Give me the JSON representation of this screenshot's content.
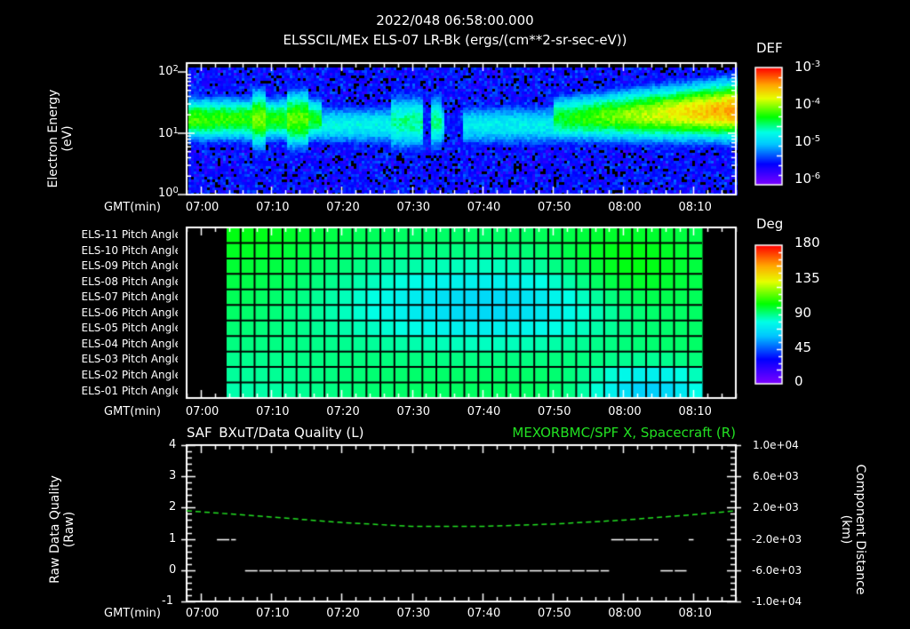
{
  "header": {
    "timestamp": "2022/048 06:58:00.000",
    "subtitle": "ELSSCIL/MEx ELS-07 LR-Bk  (ergs/(cm**2-sr-sec-eV))"
  },
  "time_axis": {
    "label": "GMT(min)",
    "ticks": [
      "07:00",
      "07:10",
      "07:20",
      "07:30",
      "07:40",
      "07:50",
      "08:00",
      "08:10"
    ]
  },
  "panel_spectrogram": {
    "ylabel_line1": "Electron Energy",
    "ylabel_line2": "(eV)",
    "yticks": [
      {
        "base": "10",
        "exp": "2"
      },
      {
        "base": "10",
        "exp": "1"
      },
      {
        "base": "10",
        "exp": "0"
      }
    ],
    "colorbar": {
      "title": "DEF",
      "ticks": [
        {
          "base": "10",
          "exp": "-3"
        },
        {
          "base": "10",
          "exp": "-4"
        },
        {
          "base": "10",
          "exp": "-5"
        },
        {
          "base": "10",
          "exp": "-6"
        }
      ]
    }
  },
  "panel_pitch": {
    "row_labels": [
      "ELS-11 Pitch Angle",
      "ELS-10 Pitch Angle",
      "ELS-09 Pitch Angle",
      "ELS-08 Pitch Angle",
      "ELS-07 Pitch Angle",
      "ELS-06 Pitch Angle",
      "ELS-05 Pitch Angle",
      "ELS-04 Pitch Angle",
      "ELS-03 Pitch Angle",
      "ELS-02 Pitch Angle",
      "ELS-01 Pitch Angle"
    ],
    "colorbar": {
      "title": "Deg",
      "ticks": [
        "180",
        "135",
        "90",
        "45",
        "0"
      ]
    }
  },
  "panel_quality": {
    "left_title": "SAF_BXuT/Data Quality (L)",
    "right_title": "MEXORBMC/SPF X, Spacecraft (R)",
    "ylabel_left_line1": "Raw Data Quality",
    "ylabel_left_line2": "(Raw)",
    "yticks_left": [
      "4",
      "3",
      "2",
      "1",
      "0",
      "-1"
    ],
    "ylabel_right_line1": "Component Distance",
    "ylabel_right_line2": "(km)",
    "yticks_right": [
      "1.0e+04",
      "6.0e+03",
      "2.0e+03",
      "-2.0e+03",
      "-6.0e+03",
      "-1.0e+04"
    ]
  },
  "colors": {
    "background": "#000000",
    "axis": "#ffffff",
    "spf_x_line": "#22e022",
    "quality_line": "#ffffff"
  },
  "chart_data": [
    {
      "type": "heatmap",
      "title": "ELSSCIL/MEx ELS-07 LR-Bk (ergs/(cm**2-sr-sec-eV))",
      "xlabel": "GMT(min)",
      "ylabel": "Electron Energy (eV)",
      "x_range": [
        "06:58",
        "08:16"
      ],
      "y_scale": "log",
      "ylim": [
        1,
        150
      ],
      "colorbar_label": "DEF",
      "colorbar_range": [
        1e-06,
        0.001
      ],
      "features": [
        {
          "time": "06:58-07:17",
          "energy_band_eV": [
            6,
            40
          ],
          "intensity": "1e-4 to 2e-4"
        },
        {
          "time": "07:17-07:27",
          "energy_band_eV": [
            6,
            30
          ],
          "intensity": "~2e-5"
        },
        {
          "time": "07:28-07:33",
          "energy_band_eV": [
            5,
            40
          ],
          "intensity": "~5e-5"
        },
        {
          "time": "07:34-07:50",
          "energy_band_eV": [
            6,
            30
          ],
          "intensity": "~1.5e-5"
        },
        {
          "time": "07:50-08:16",
          "energy_band_eV": [
            6,
            60
          ],
          "intensity": "1e-4 rising to 6e-4 near 08:14"
        }
      ]
    },
    {
      "type": "heatmap",
      "title": "Pitch Angle",
      "xlabel": "GMT(min)",
      "rows": [
        "ELS-11",
        "ELS-10",
        "ELS-09",
        "ELS-08",
        "ELS-07",
        "ELS-06",
        "ELS-05",
        "ELS-04",
        "ELS-03",
        "ELS-02",
        "ELS-01"
      ],
      "x_range": [
        "07:03",
        "08:11"
      ],
      "colorbar_label": "Deg",
      "colorbar_range": [
        0,
        180
      ],
      "summary": "Values ~70-110 deg; minimum ~55 deg around 07:35-07:45 rows ELS-07..ELS-05; ~100-110 deg around 08:00 rows ELS-10..ELS-07; ~55 deg near 08:00-08:10 row ELS-01"
    },
    {
      "type": "line",
      "title_left": "SAF_BXuT/Data Quality (L)",
      "title_right": "MEXORBMC/SPF X, Spacecraft (R)",
      "xlabel": "GMT(min)",
      "ylabel_left": "Raw Data Quality (Raw)",
      "ylabel_right": "Component Distance (km)",
      "ylim_left": [
        -1,
        4
      ],
      "ylim_right": [
        -10000,
        10000
      ],
      "series": [
        {
          "name": "Data Quality",
          "axis": "left",
          "segments": [
            {
              "x": [
                "07:02",
                "07:05"
              ],
              "y": 1
            },
            {
              "x": [
                "07:06",
                "07:58"
              ],
              "y": 0
            },
            {
              "x": [
                "07:58",
                "08:05"
              ],
              "y": 1
            },
            {
              "x": [
                "08:05",
                "08:09"
              ],
              "y": 0
            },
            {
              "x": [
                "08:09",
                "08:10"
              ],
              "y": 1
            }
          ]
        },
        {
          "name": "SPF X",
          "axis": "right",
          "x": [
            "06:58",
            "07:10",
            "07:20",
            "07:30",
            "07:40",
            "07:50",
            "08:00",
            "08:10",
            "08:16"
          ],
          "y": [
            1600,
            800,
            100,
            -400,
            -400,
            -100,
            400,
            1100,
            1600
          ]
        }
      ]
    }
  ]
}
